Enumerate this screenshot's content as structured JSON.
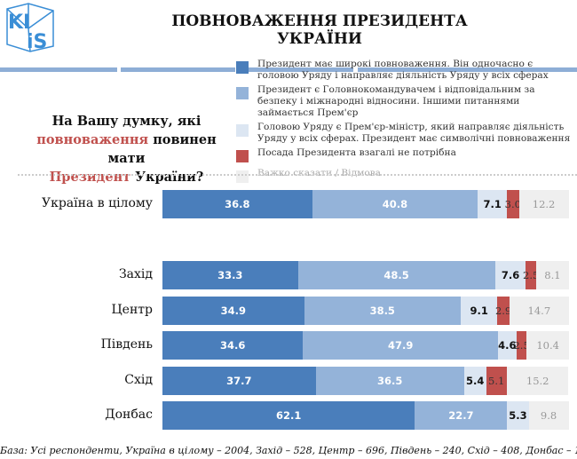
{
  "logo_text": "KIIS",
  "title": "ПОВНОВАЖЕННЯ ПРЕЗИДЕНТА УКРАЇНИ",
  "question": {
    "p1": "На Вашу думку, які",
    "p2_red": "повноваження",
    "p2": " повинен мати",
    "p3_red": "Президент",
    "p3": " України?"
  },
  "footer": "База: Усі респонденти, Україна в цілому – 2004, Захід – 528, Центр – 696, Південь – 240, Схід – 408, Донбас – 132.",
  "chart_data": {
    "type": "bar",
    "orientation": "horizontal",
    "stacked": true,
    "title": "ПОВНОВАЖЕННЯ ПРЕЗИДЕНТА УКРАЇНИ",
    "legend_position": "top-right",
    "series": [
      {
        "name": "Президент має широкі повноваження. Він одночасно є головою Уряду і направляє діяльність Уряду у всіх сферах",
        "color": "#4a7ebb",
        "values": [
          36.8,
          33.3,
          34.9,
          34.6,
          37.7,
          62.1
        ]
      },
      {
        "name": "Президент є Головнокомандувачем і відповідальним за безпеку і міжнародні відносини. Іншими питаннями займається Прем'єр",
        "color": "#94b3d9",
        "values": [
          40.8,
          48.5,
          38.5,
          47.9,
          36.5,
          22.7
        ]
      },
      {
        "name": "Головою Уряду є Прем'єр-міністр, який направляє діяльність Уряду у всіх сферах. Президент має символічні повноваження",
        "color": "#dce6f2",
        "values": [
          7.1,
          7.6,
          9.1,
          4.6,
          5.4,
          5.3
        ]
      },
      {
        "name": "Посада Президента взагалі не потрібна",
        "color": "#c0504d",
        "values": [
          3.0,
          2.5,
          2.9,
          2.5,
          5.1,
          null
        ]
      },
      {
        "name": "Важко сказати / Відмова",
        "color": "#efefef",
        "values": [
          12.2,
          8.1,
          14.7,
          10.4,
          15.2,
          9.8
        ]
      }
    ],
    "categories": [
      "Україна в цілому",
      "Захід",
      "Центр",
      "Південь",
      "Схід",
      "Донбас"
    ],
    "xlim": [
      0,
      100
    ]
  }
}
